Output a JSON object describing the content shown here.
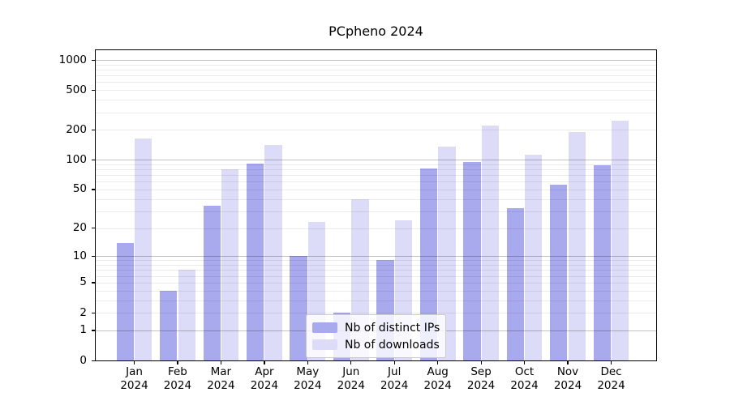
{
  "chart_data": {
    "type": "bar",
    "title": "PCpheno 2024",
    "x": [
      "Jan",
      "Feb",
      "Mar",
      "Apr",
      "May",
      "Jun",
      "Jul",
      "Aug",
      "Sep",
      "Oct",
      "Nov",
      "Dec"
    ],
    "x_year": "2024",
    "series": [
      {
        "name": "Nb of distinct IPs",
        "key": "distinct-ips",
        "color": "#a9a9ee",
        "values": [
          14,
          4,
          34,
          92,
          10,
          2,
          9,
          82,
          95,
          32,
          56,
          88
        ]
      },
      {
        "name": "Nb of downloads",
        "key": "downloads",
        "color": "#dcdcf8",
        "values": [
          165,
          7,
          80,
          140,
          23,
          40,
          24,
          135,
          220,
          112,
          190,
          245
        ]
      }
    ],
    "xlabel": "",
    "ylabel": "",
    "yscale": "log1p",
    "ylim": [
      0,
      1280
    ],
    "y_ticks": [
      0,
      1,
      2,
      5,
      10,
      20,
      50,
      100,
      200,
      500,
      1000
    ],
    "y_major_gridlines": [
      1,
      10,
      100,
      1000
    ],
    "y_minor_gridlines": [
      2,
      3,
      4,
      5,
      6,
      7,
      8,
      9,
      20,
      30,
      40,
      50,
      60,
      70,
      80,
      90,
      200,
      300,
      400,
      500,
      600,
      700,
      800,
      900
    ],
    "grid": true,
    "legend_position": "lower center"
  },
  "colors": {
    "bar_distinct_ips": "#a9a9ee",
    "bar_downloads": "#dcdcf8",
    "grid_major": "#c4c4c4",
    "grid_minor": "#ececec",
    "spine": "#000000",
    "legend_border": "#cccccc"
  }
}
